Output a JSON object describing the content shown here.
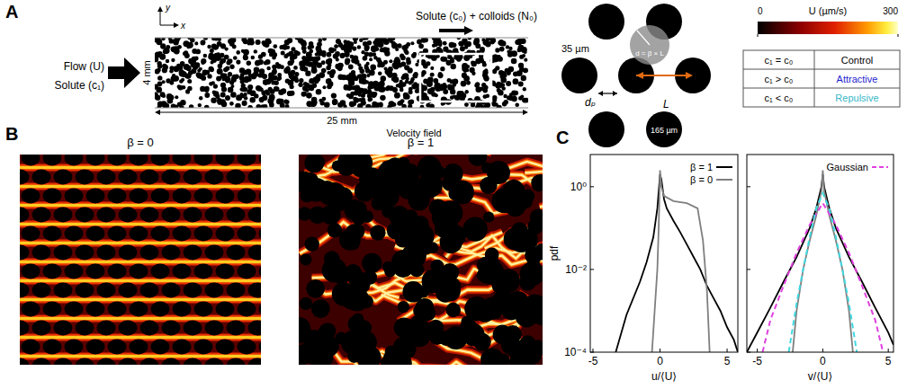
{
  "panel_a": {
    "letter": "A",
    "axes": [
      "y",
      "x"
    ],
    "inlet_labels": [
      "Flow (U)",
      "Solute (c₁)"
    ],
    "outlet_label": "Solute (c₀) + colloids (N₀)",
    "width_label": "4 mm",
    "length_label": "25 mm",
    "lattice": {
      "labels": [
        "35 µm",
        "d = β × L",
        "dₚ",
        "L",
        "165 µm"
      ]
    },
    "colorbar": {
      "label": "U (µm/s)",
      "range": [
        0,
        300
      ],
      "ticks": [
        0,
        300
      ]
    },
    "table": {
      "rows": [
        [
          "c₁ = c₀",
          "Control"
        ],
        [
          "c₁ > c₀",
          "Attractive"
        ],
        [
          "c₁ < c₀",
          "Repulsive"
        ]
      ],
      "colors": [
        "#000000",
        "#1f1fd0",
        "#3ab7c8"
      ]
    }
  },
  "panel_b": {
    "letter": "B",
    "title": "Velocity field",
    "panels": [
      {
        "title": "β = 0"
      },
      {
        "title": "β = 1"
      }
    ]
  },
  "panel_c": {
    "letter": "C"
  },
  "chart_data": [
    {
      "type": "line",
      "x_label": "u/⟨U⟩",
      "y_label": "pdf",
      "log": "y",
      "xlim": [
        -5.2,
        5.8
      ],
      "ylim": [
        0.0001,
        6
      ],
      "xticks": [
        -5,
        0,
        5
      ],
      "yticks": [
        {
          "value": 1,
          "label": "10⁰"
        },
        {
          "value": 0.01,
          "label": "10⁻²"
        },
        {
          "value": 0.0001,
          "label": "10⁻⁴"
        }
      ],
      "legend": "top-right",
      "series": [
        {
          "name": "β = 1",
          "color": "#000000",
          "line_style": "solid",
          "x": [
            -3.3,
            -2.5,
            -1.5,
            -1,
            -0.5,
            -0.2,
            0,
            0.1,
            0.3,
            0.5,
            1,
            1.5,
            2,
            2.5,
            3,
            3.5,
            4,
            4.5,
            5,
            5.5,
            5.8
          ],
          "values": [
            0.0001,
            0.0008,
            0.005,
            0.015,
            0.06,
            0.3,
            2,
            1.5,
            0.5,
            0.3,
            0.15,
            0.08,
            0.04,
            0.02,
            0.01,
            0.004,
            0.002,
            0.001,
            0.0004,
            0.0002,
            0.0001
          ]
        },
        {
          "name": "β = 0",
          "color": "#7f7f7f",
          "line_style": "solid",
          "x": [
            -0.6,
            -0.4,
            -0.2,
            -0.1,
            0,
            0.1,
            0.3,
            1,
            2,
            2.8,
            3.2,
            3.5,
            3.7
          ],
          "values": [
            0.0001,
            0.001,
            0.01,
            0.1,
            2.5,
            1,
            0.6,
            0.45,
            0.4,
            0.3,
            0.05,
            0.003,
            0.0001
          ]
        }
      ]
    },
    {
      "type": "line",
      "x_label": "v/⟨U⟩",
      "log": "y",
      "xlim": [
        -5.8,
        5.4
      ],
      "ylim": [
        0.0001,
        6
      ],
      "xticks": [
        -5,
        0,
        5
      ],
      "yticks": [
        1,
        0.01,
        0.0001
      ],
      "tick_labels": "x",
      "legend": "top-right",
      "series": [
        {
          "color": "#000000",
          "line_style": "solid",
          "x": [
            -5.8,
            -5,
            -4,
            -3,
            -2,
            -1,
            -0.5,
            -0.1,
            0,
            0.1,
            0.5,
            1,
            2,
            3,
            4,
            5,
            5.4
          ],
          "values": [
            0.0001,
            0.0003,
            0.0012,
            0.005,
            0.02,
            0.1,
            0.3,
            1,
            2,
            1,
            0.3,
            0.1,
            0.02,
            0.005,
            0.0012,
            0.0003,
            0.00015
          ]
        },
        {
          "color": "#7f7f7f",
          "line_style": "solid",
          "x": [
            -2.3,
            -2,
            -1.5,
            -1,
            -0.5,
            -0.1,
            0,
            0.1,
            0.5,
            1,
            1.5,
            2,
            2.3
          ],
          "values": [
            0.0001,
            0.001,
            0.01,
            0.05,
            0.2,
            0.8,
            2.5,
            0.8,
            0.2,
            0.05,
            0.01,
            0.001,
            0.0001
          ]
        },
        {
          "name": "Gaussian",
          "color": "#e040e0",
          "line_style": "dashed",
          "x": [
            -4.6,
            -4,
            -3,
            -2,
            -1,
            0,
            1,
            2,
            3,
            4,
            4.6
          ],
          "values": [
            0.0001,
            0.0006,
            0.004,
            0.025,
            0.12,
            0.4,
            0.12,
            0.025,
            0.004,
            0.0006,
            0.0001
          ]
        },
        {
          "color": "#40d8e0",
          "line_style": "dashed",
          "x": [
            -2.6,
            -2,
            -1.5,
            -1,
            -0.5,
            0,
            0.5,
            1,
            1.5,
            2,
            2.6
          ],
          "values": [
            0.0001,
            0.0015,
            0.01,
            0.06,
            0.3,
            0.7,
            0.3,
            0.06,
            0.01,
            0.0015,
            0.0001
          ]
        }
      ]
    }
  ]
}
